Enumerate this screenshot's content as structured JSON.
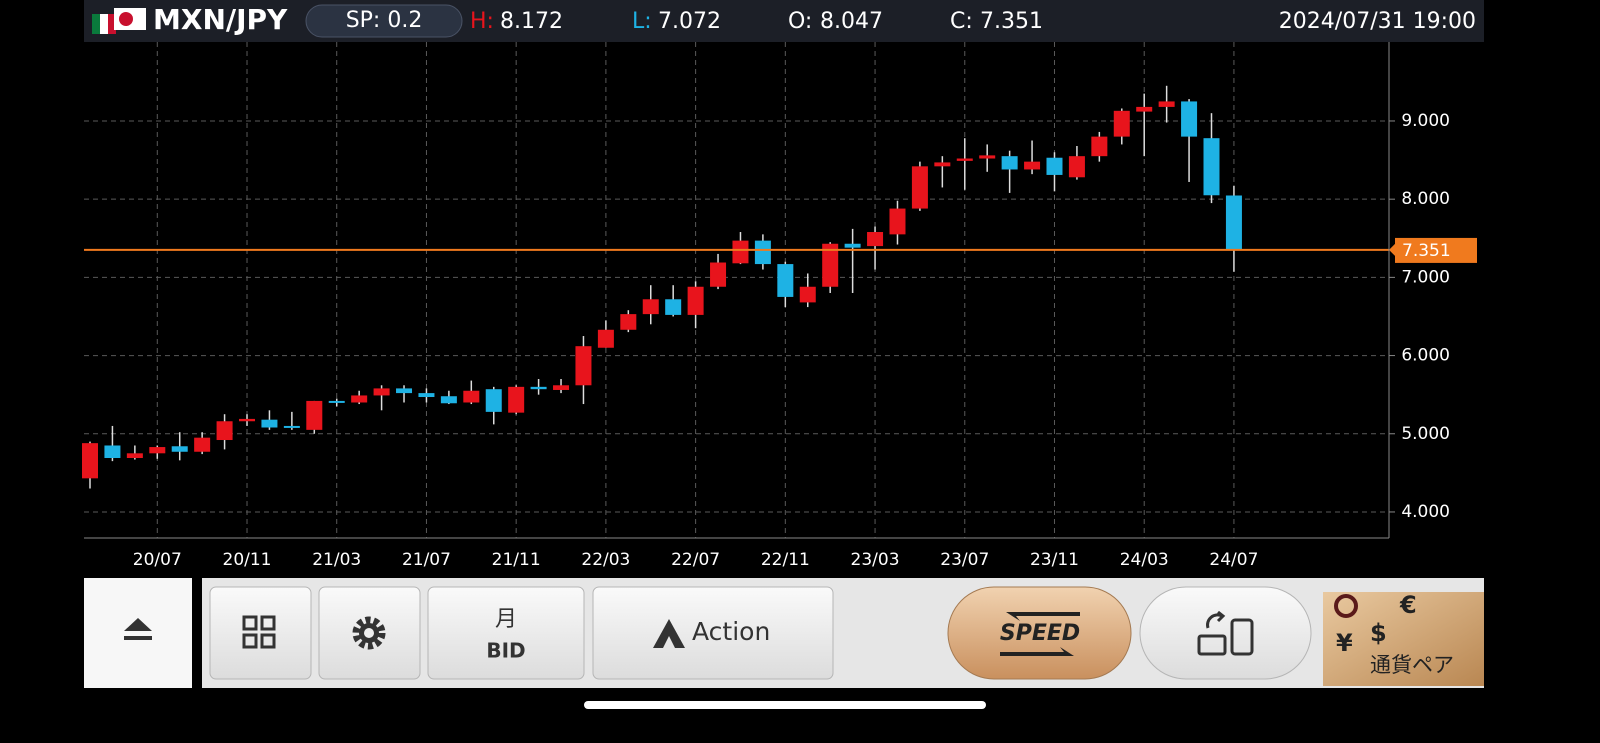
{
  "header": {
    "pair": "MXN/JPY",
    "spread": "SP: 0.2",
    "high": {
      "label": "H:",
      "value": "8.172"
    },
    "low": {
      "label": "L:",
      "value": "7.072"
    },
    "open": {
      "label": "O:",
      "value": "8.047"
    },
    "close": {
      "label": "C:",
      "value": "7.351"
    },
    "datetime": "2024/07/31 19:00"
  },
  "chart_data": {
    "type": "candlestick",
    "categories": [
      null,
      null,
      null,
      "20/07",
      null,
      null,
      null,
      "20/11",
      null,
      null,
      null,
      "21/03",
      null,
      null,
      null,
      "21/07",
      null,
      null,
      null,
      "21/11",
      null,
      null,
      null,
      "22/03",
      null,
      null,
      null,
      "22/07",
      null,
      null,
      null,
      "22/11",
      null,
      null,
      null,
      "23/03",
      null,
      null,
      null,
      "23/07",
      null,
      null,
      null,
      "23/11",
      null,
      null,
      null,
      "24/03",
      null,
      null,
      null,
      "24/07"
    ],
    "open": [
      4.43,
      4.85,
      4.69,
      4.75,
      4.84,
      4.77,
      4.92,
      5.16,
      5.18,
      5.1,
      5.05,
      5.42,
      5.4,
      5.49,
      5.58,
      5.52,
      5.48,
      5.4,
      5.57,
      5.27,
      5.6,
      5.56,
      5.62,
      6.1,
      6.33,
      6.53,
      6.72,
      6.52,
      6.88,
      7.18,
      7.47,
      7.17,
      6.68,
      6.88,
      7.43,
      7.4,
      7.55,
      7.88,
      8.42,
      8.49,
      8.52,
      8.55,
      8.38,
      8.53,
      8.28,
      8.55,
      8.8,
      9.12,
      9.18,
      9.25,
      8.78,
      8.047
    ],
    "high": [
      4.9,
      5.1,
      4.85,
      4.85,
      5.02,
      5.02,
      5.25,
      5.25,
      5.3,
      5.28,
      5.42,
      5.45,
      5.55,
      5.62,
      5.62,
      5.58,
      5.55,
      5.68,
      5.6,
      5.62,
      5.7,
      5.7,
      6.25,
      6.45,
      6.58,
      6.9,
      6.9,
      6.95,
      7.3,
      7.58,
      7.55,
      7.2,
      7.05,
      7.45,
      7.62,
      7.65,
      7.98,
      8.48,
      8.55,
      8.78,
      8.7,
      8.62,
      8.75,
      8.6,
      8.68,
      8.86,
      9.16,
      9.35,
      9.45,
      9.28,
      9.1,
      8.172
    ],
    "low": [
      4.3,
      4.65,
      4.67,
      4.68,
      4.66,
      4.74,
      4.8,
      5.1,
      5.05,
      5.05,
      5.0,
      5.35,
      5.38,
      5.3,
      5.4,
      5.4,
      5.38,
      5.38,
      5.12,
      5.25,
      5.5,
      5.52,
      5.38,
      6.1,
      6.3,
      6.4,
      6.5,
      6.35,
      6.85,
      7.17,
      7.1,
      6.62,
      6.62,
      6.8,
      6.8,
      7.1,
      7.42,
      7.85,
      8.15,
      8.12,
      8.35,
      8.08,
      8.32,
      8.1,
      8.25,
      8.48,
      8.7,
      8.55,
      8.98,
      8.22,
      7.95,
      7.072
    ],
    "close": [
      4.88,
      4.69,
      4.75,
      4.83,
      4.77,
      4.95,
      5.16,
      5.19,
      5.08,
      5.08,
      5.42,
      5.4,
      5.49,
      5.58,
      5.52,
      5.47,
      5.39,
      5.55,
      5.28,
      5.6,
      5.57,
      5.62,
      6.12,
      6.33,
      6.53,
      6.72,
      6.52,
      6.88,
      7.19,
      7.47,
      7.17,
      6.75,
      6.88,
      7.43,
      7.38,
      7.58,
      7.88,
      8.42,
      8.47,
      8.52,
      8.56,
      8.38,
      8.48,
      8.31,
      8.55,
      8.8,
      9.13,
      9.18,
      9.25,
      8.8,
      8.05,
      7.351
    ],
    "up_color": "#e8141c",
    "down_color": "#1eb2e4",
    "ylim": [
      3.667,
      10.01
    ],
    "yticks": [
      {
        "value": 4,
        "label": "4.000"
      },
      {
        "value": 5,
        "label": "5.000"
      },
      {
        "value": 6,
        "label": "6.000"
      },
      {
        "value": 7,
        "label": "7.000"
      },
      {
        "value": 8,
        "label": "8.000"
      },
      {
        "value": 9,
        "label": "9.000"
      }
    ],
    "grid": true,
    "last_price": 7.351,
    "last_price_color": "#f07a1e"
  },
  "toolbar": {
    "period": "月",
    "price_type": "BID",
    "action": "Action",
    "speed": "SPEED",
    "pair_tile": {
      "euro": "€",
      "dollar": "$",
      "yen": "¥",
      "label": "通貨ペア"
    }
  }
}
